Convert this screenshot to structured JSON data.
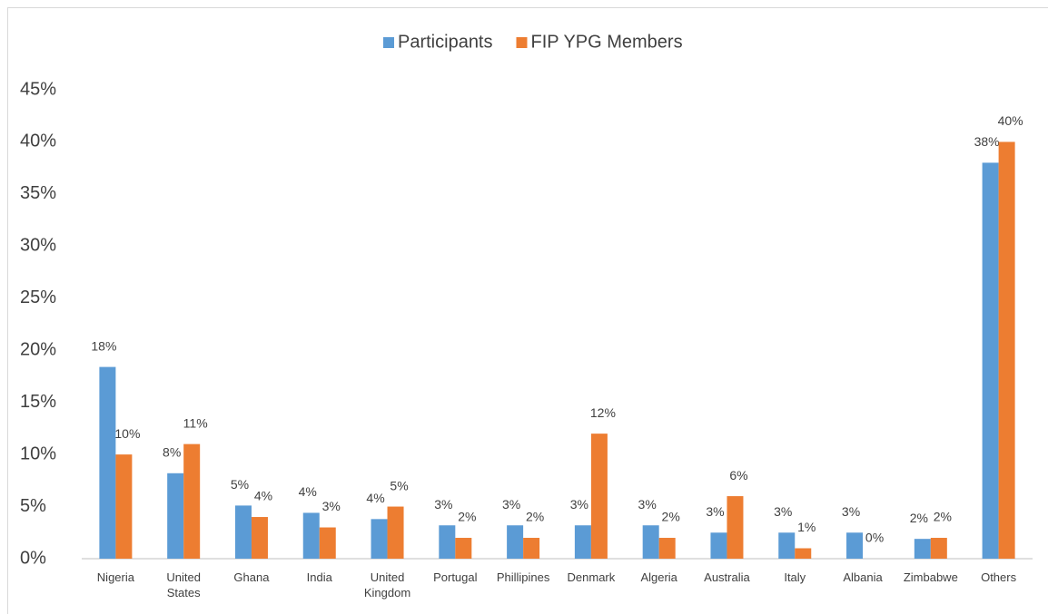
{
  "chart_data": {
    "type": "bar",
    "categories": [
      "Nigeria",
      "United States",
      "Ghana",
      "India",
      "United Kingdom",
      "Portugal",
      "Phillipines",
      "Denmark",
      "Algeria",
      "Australia",
      "Italy",
      "Albania",
      "Zimbabwe",
      "Others"
    ],
    "series": [
      {
        "name": "Participants",
        "color": "#5b9bd5",
        "values": [
          18.4,
          8.2,
          5.1,
          4.4,
          3.8,
          3.2,
          3.2,
          3.2,
          3.2,
          2.5,
          2.5,
          2.5,
          1.9,
          38
        ],
        "value_labels": [
          "18%",
          "8%",
          "5%",
          "4%",
          "4%",
          "3%",
          "3%",
          "3%",
          "3%",
          "3%",
          "3%",
          "3%",
          "2%",
          "38%"
        ]
      },
      {
        "name": "FIP YPG Members",
        "color": "#ed7d31",
        "values": [
          10,
          11,
          4,
          3,
          5,
          2,
          2,
          12,
          2,
          6,
          1,
          0,
          2,
          40
        ],
        "value_labels": [
          "10%",
          "11%",
          "4%",
          "3%",
          "5%",
          "2%",
          "2%",
          "12%",
          "2%",
          "6%",
          "1%",
          "0%",
          "2%",
          "40%"
        ]
      }
    ],
    "ylim": [
      0,
      45
    ],
    "yticks": [
      {
        "value": 0,
        "label": "0%"
      },
      {
        "value": 5,
        "label": "5%"
      },
      {
        "value": 10,
        "label": "10%"
      },
      {
        "value": 15,
        "label": "15%"
      },
      {
        "value": 20,
        "label": "20%"
      },
      {
        "value": 25,
        "label": "25%"
      },
      {
        "value": 30,
        "label": "30%"
      },
      {
        "value": 35,
        "label": "35%"
      },
      {
        "value": 40,
        "label": "40%"
      },
      {
        "value": 45,
        "label": "45%"
      }
    ],
    "grid": false,
    "legend": "top"
  }
}
